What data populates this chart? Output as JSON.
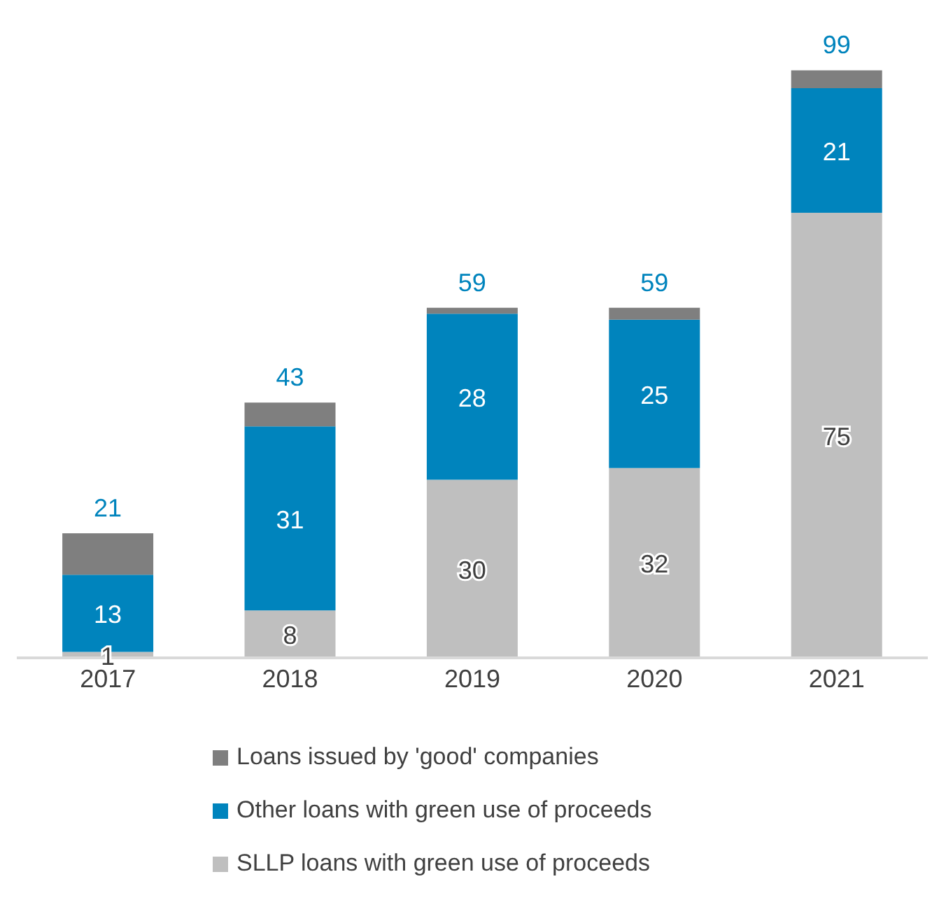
{
  "chart_data": {
    "type": "bar",
    "stacked": true,
    "categories": [
      "2017",
      "2018",
      "2019",
      "2020",
      "2021"
    ],
    "series": [
      {
        "name": "SLLP loans with green use of proceeds",
        "color": "#bfbfbf",
        "values": [
          1,
          8,
          30,
          32,
          75
        ],
        "value_labels": [
          "1",
          "8",
          "30",
          "32",
          "75"
        ]
      },
      {
        "name": "Other loans with green use of proceeds",
        "color": "#0084bd",
        "values": [
          13,
          31,
          28,
          25,
          21
        ],
        "value_labels": [
          "13",
          "31",
          "28",
          "25",
          "21"
        ]
      },
      {
        "name": "Loans issued by 'good' companies",
        "color": "#7f7f7f",
        "values": [
          7,
          4,
          1,
          2,
          3
        ]
      }
    ],
    "totals": [
      "21",
      "43",
      "59",
      "59",
      "99"
    ],
    "tick_labels": "x",
    "legend": "bottom"
  }
}
